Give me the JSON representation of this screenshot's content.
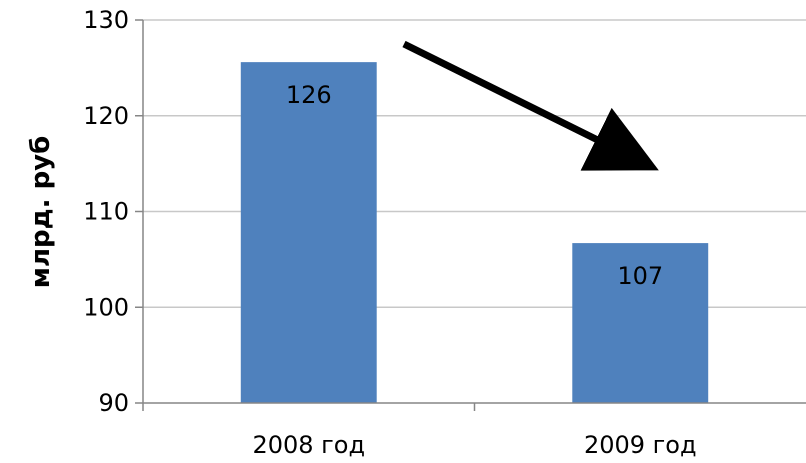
{
  "chart_data": {
    "type": "bar",
    "categories": [
      "2008 год",
      "2009 год"
    ],
    "values": [
      125.6,
      106.7
    ],
    "data_labels": [
      "126",
      "107"
    ],
    "title": "",
    "xlabel": "",
    "ylabel": "млрд. руб",
    "ylim": [
      90,
      130
    ],
    "yticks": [
      90,
      100,
      110,
      120,
      130
    ],
    "grid": true,
    "legend": "none",
    "annotation": "downward arrow",
    "colors": {
      "bar": "#4f81bd",
      "grid": "#c8c8c8",
      "axis": "#868686",
      "text": "#000000",
      "arrow": "#000000"
    }
  }
}
